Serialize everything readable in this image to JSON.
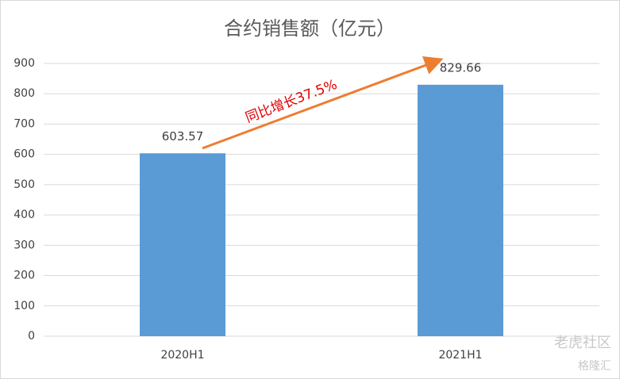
{
  "chart_data": {
    "type": "bar",
    "title": "合约销售额（亿元）",
    "categories": [
      "2020H1",
      "2021H1"
    ],
    "values": [
      603.57,
      829.66
    ],
    "color": "#5b9bd5",
    "ylim": [
      0,
      900
    ],
    "yticks": [
      0,
      100,
      200,
      300,
      400,
      500,
      600,
      700,
      800,
      900
    ],
    "grid": true,
    "annotation": "同比增长37.5%",
    "annotation_color": "#e00000",
    "arrow_color": "#ed7d31",
    "watermarks": [
      "老虎社区",
      "格隆汇"
    ]
  }
}
